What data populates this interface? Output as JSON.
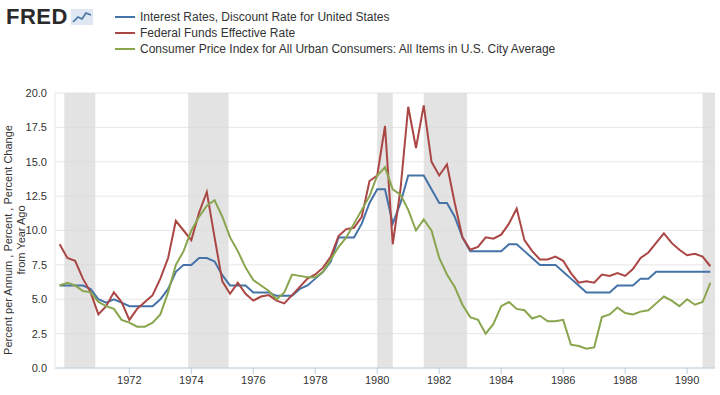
{
  "chart_data": {
    "type": "line",
    "logo": "FRED",
    "y_label": [
      "Percent per Annum , Percent , Percent Change",
      "from Year Ago"
    ],
    "x": [
      1969.75,
      1970,
      1970.25,
      1970.5,
      1970.75,
      1971,
      1971.25,
      1971.5,
      1971.75,
      1972,
      1972.25,
      1972.5,
      1972.75,
      1973,
      1973.25,
      1973.5,
      1973.75,
      1974,
      1974.25,
      1974.5,
      1974.75,
      1975,
      1975.25,
      1975.5,
      1975.75,
      1976,
      1976.25,
      1976.5,
      1976.75,
      1977,
      1977.25,
      1977.5,
      1977.75,
      1978,
      1978.25,
      1978.5,
      1978.75,
      1979,
      1979.25,
      1979.5,
      1979.75,
      1980,
      1980.25,
      1980.5,
      1980.75,
      1981,
      1981.25,
      1981.5,
      1981.75,
      1982,
      1982.25,
      1982.5,
      1982.75,
      1983,
      1983.25,
      1983.5,
      1983.75,
      1984,
      1984.25,
      1984.5,
      1984.75,
      1985,
      1985.25,
      1985.5,
      1985.75,
      1986,
      1986.25,
      1986.5,
      1986.75,
      1987,
      1987.25,
      1987.5,
      1987.75,
      1988,
      1988.25,
      1988.5,
      1988.75,
      1989,
      1989.25,
      1989.5,
      1989.75,
      1990,
      1990.25,
      1990.5,
      1990.75
    ],
    "series": [
      {
        "name": "Interest Rates, Discount Rate for United States",
        "color": "#4572a7",
        "values": [
          6.0,
          6.0,
          6.0,
          6.0,
          5.75,
          5.0,
          4.75,
          5.0,
          4.75,
          4.5,
          4.5,
          4.5,
          4.5,
          5.0,
          5.75,
          7.0,
          7.5,
          7.5,
          8.0,
          8.0,
          7.75,
          6.75,
          6.0,
          6.0,
          6.0,
          5.5,
          5.5,
          5.5,
          5.25,
          5.25,
          5.25,
          5.75,
          6.0,
          6.5,
          7.0,
          7.75,
          9.5,
          9.5,
          9.5,
          10.5,
          12.0,
          13.0,
          13.0,
          10.5,
          12.0,
          14.0,
          14.0,
          14.0,
          13.0,
          12.0,
          12.0,
          11.0,
          9.5,
          8.5,
          8.5,
          8.5,
          8.5,
          8.5,
          9.0,
          9.0,
          8.5,
          8.0,
          7.5,
          7.5,
          7.5,
          7.0,
          6.5,
          6.0,
          5.5,
          5.5,
          5.5,
          5.5,
          6.0,
          6.0,
          6.0,
          6.5,
          6.5,
          7.0,
          7.0,
          7.0,
          7.0,
          7.0,
          7.0,
          7.0,
          7.0
        ]
      },
      {
        "name": "Federal Funds Effective Rate",
        "color": "#aa4643",
        "values": [
          9.0,
          8.0,
          7.8,
          6.5,
          5.5,
          3.9,
          4.5,
          5.5,
          4.8,
          3.5,
          4.3,
          4.8,
          5.3,
          6.5,
          8.0,
          10.7,
          10.0,
          9.3,
          11.3,
          12.8,
          9.5,
          6.3,
          5.4,
          6.2,
          5.4,
          4.9,
          5.2,
          5.3,
          4.9,
          4.7,
          5.3,
          5.9,
          6.5,
          6.8,
          7.3,
          8.1,
          9.6,
          10.1,
          10.2,
          11.0,
          13.6,
          14.0,
          17.6,
          9.0,
          13.0,
          19.0,
          16.0,
          19.1,
          15.0,
          14.0,
          14.8,
          12.0,
          9.5,
          8.6,
          8.8,
          9.5,
          9.4,
          9.7,
          10.5,
          11.6,
          9.3,
          8.5,
          7.9,
          7.9,
          8.1,
          7.8,
          6.9,
          6.2,
          6.3,
          6.2,
          6.8,
          6.7,
          6.9,
          6.7,
          7.2,
          8.0,
          8.4,
          9.1,
          9.8,
          9.1,
          8.6,
          8.2,
          8.3,
          8.1,
          7.4
        ]
      },
      {
        "name": "Consumer Price Index for All Urban Consumers: All Items in U.S. City Average",
        "color": "#89a54e",
        "values": [
          6.0,
          6.2,
          6.0,
          5.6,
          5.5,
          4.8,
          4.5,
          4.3,
          3.5,
          3.3,
          3.0,
          3.0,
          3.3,
          3.9,
          5.5,
          7.5,
          8.5,
          10.0,
          11.0,
          11.8,
          12.2,
          11.0,
          9.5,
          8.5,
          7.3,
          6.4,
          6.0,
          5.6,
          5.0,
          5.5,
          6.8,
          6.7,
          6.6,
          6.6,
          7.0,
          7.9,
          8.8,
          9.5,
          10.5,
          11.5,
          12.5,
          14.0,
          14.6,
          13.0,
          12.6,
          11.5,
          10.0,
          10.8,
          10.0,
          8.0,
          6.8,
          5.9,
          4.6,
          3.7,
          3.5,
          2.5,
          3.2,
          4.5,
          4.8,
          4.3,
          4.2,
          3.6,
          3.8,
          3.4,
          3.4,
          3.5,
          1.7,
          1.6,
          1.4,
          1.5,
          3.7,
          3.9,
          4.4,
          4.0,
          3.9,
          4.1,
          4.2,
          4.7,
          5.2,
          4.9,
          4.5,
          5.0,
          4.6,
          4.8,
          6.2
        ]
      }
    ],
    "recessions": [
      [
        1969.9,
        1970.9
      ],
      [
        1973.9,
        1975.2
      ],
      [
        1980.0,
        1980.5
      ],
      [
        1981.5,
        1982.9
      ],
      [
        1990.5,
        1991.2
      ]
    ],
    "xlim": [
      1969.6,
      1990.9
    ],
    "xticks": [
      1972,
      1974,
      1976,
      1978,
      1980,
      1982,
      1984,
      1986,
      1988,
      1990
    ],
    "ylim": [
      0,
      20
    ],
    "yticks": [
      {
        "value": 0,
        "label": "0.0"
      },
      {
        "value": 2.5,
        "label": "2.5"
      },
      {
        "value": 5,
        "label": "5.0"
      },
      {
        "value": 7.5,
        "label": "7.5"
      },
      {
        "value": 10,
        "label": "10.0"
      },
      {
        "value": 12.5,
        "label": "12.5"
      },
      {
        "value": 15,
        "label": "15.0"
      },
      {
        "value": 17.5,
        "label": "17.5"
      },
      {
        "value": 20,
        "label": "20.0"
      }
    ],
    "grid": true,
    "legend": "top"
  }
}
